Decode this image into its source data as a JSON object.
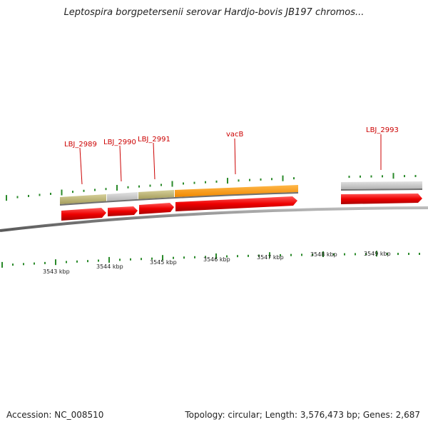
{
  "title": "Leptospira borgpetersenii serovar Hardjo-bovis JB197 chromos...",
  "accession_text": "Accession: NC_008510",
  "summary_text": "Topology: circular; Length: 3,576,473 bp; Genes: 2,687",
  "colors": {
    "backbone": "#8a8a8a",
    "gene_arrow": "#ee0000",
    "tick": "#2a8a2a",
    "label": "#cc0000",
    "cog_olive": "#b8b070",
    "cog_gray": "#c4c4c4",
    "cog_orange": "#ff9900"
  },
  "ticks": [
    {
      "label": "3543 kbp"
    },
    {
      "label": "3544 kbp"
    },
    {
      "label": "3545 kbp"
    },
    {
      "label": "3546 kbp"
    },
    {
      "label": "3547 kbp"
    },
    {
      "label": "3548 kbp"
    },
    {
      "label": "3549 kbp"
    }
  ],
  "genes": [
    {
      "name": "LBJ_2989",
      "cog_color": "cog_olive"
    },
    {
      "name": "LBJ_2990",
      "cog_color": "cog_gray"
    },
    {
      "name": "LBJ_2991",
      "cog_color": "cog_olive"
    },
    {
      "name": "vacB",
      "cog_color": "cog_orange"
    },
    {
      "name": "LBJ_2993",
      "cog_color": "cog_gray"
    }
  ]
}
